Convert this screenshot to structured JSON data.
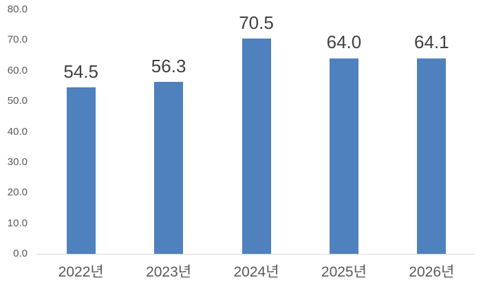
{
  "chart_data": {
    "type": "bar",
    "title": "",
    "xlabel": "",
    "ylabel": "",
    "categories": [
      "2022년",
      "2023년",
      "2024년",
      "2025년",
      "2026년"
    ],
    "values": [
      54.5,
      56.3,
      70.5,
      64.0,
      64.1
    ],
    "data_labels": [
      "54.5",
      "56.3",
      "70.5",
      "64.0",
      "64.1"
    ],
    "y_ticks": [
      "80.0",
      "70.0",
      "60.0",
      "50.0",
      "40.0",
      "30.0",
      "20.0",
      "10.0",
      "0.0"
    ],
    "ylim": [
      0,
      80
    ],
    "grid": false,
    "legend": "none",
    "colors": {
      "bar": "#4E81BD",
      "data_label": "#404040",
      "axis_text": "#595959",
      "axis_line": "#D9D9D9",
      "background": "#FFFFFF"
    }
  }
}
